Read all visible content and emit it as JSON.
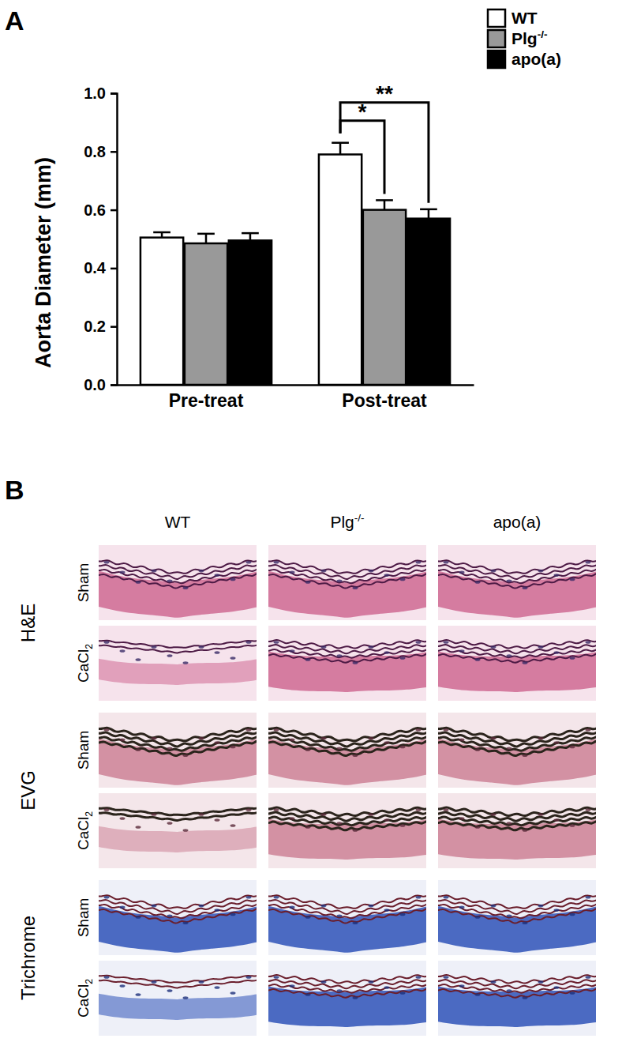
{
  "chart_data": {
    "type": "bar",
    "y_label": "Aorta Diameter (mm)",
    "categories": [
      "Pre-treat",
      "Post-treat"
    ],
    "series": [
      {
        "name": "WT",
        "color": "#ffffff",
        "values": [
          0.505,
          0.79
        ],
        "errors": [
          0.018,
          0.04
        ]
      },
      {
        "name": "Plg-/-",
        "color": "#999999",
        "values": [
          0.485,
          0.6
        ],
        "errors": [
          0.033,
          0.033
        ]
      },
      {
        "name": "apo(a)",
        "color": "#000000",
        "values": [
          0.495,
          0.57
        ],
        "errors": [
          0.025,
          0.032
        ]
      }
    ],
    "ylim": [
      0,
      1.0
    ],
    "yticks": [
      {
        "value": 0,
        "label": "0.0"
      },
      {
        "value": 0.2,
        "label": "0.2"
      },
      {
        "value": 0.4,
        "label": "0.4"
      },
      {
        "value": 0.6,
        "label": "0.6"
      },
      {
        "value": 0.8,
        "label": "0.8"
      },
      {
        "value": 1.0,
        "label": "1.0"
      }
    ],
    "legend": "top-right",
    "significance": [
      {
        "category": "Post-treat",
        "between": [
          "WT",
          "Plg-/-"
        ],
        "label": "*"
      },
      {
        "category": "Post-treat",
        "between": [
          "WT",
          "apo(a)"
        ],
        "label": "**"
      }
    ]
  },
  "figure": {
    "panel_labels": [
      "A",
      "B"
    ],
    "histology": {
      "columns": [
        "WT",
        "Plg-/-",
        "apo(a)"
      ],
      "stains": [
        "H&E",
        "EVG",
        "Trichrome"
      ],
      "conditions": [
        "Sham",
        "CaCl2"
      ]
    }
  }
}
